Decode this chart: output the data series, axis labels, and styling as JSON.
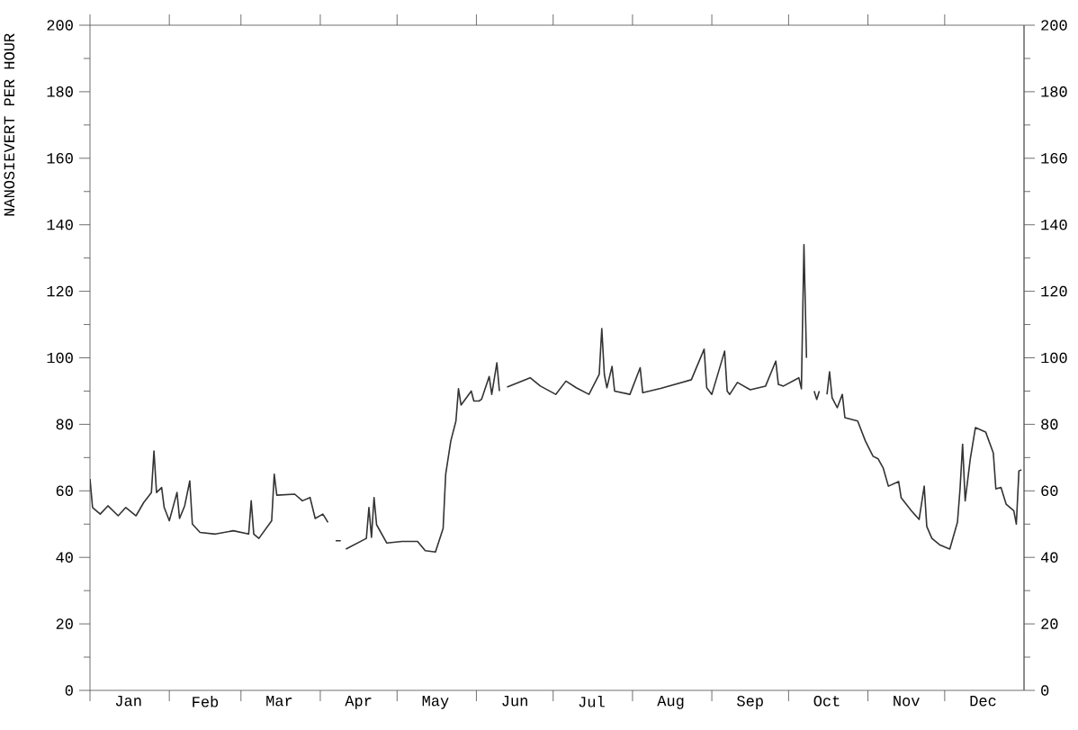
{
  "chart_data": {
    "type": "line",
    "ylabel": "NANOSIEVERT PER HOUR",
    "xlim": [
      "--01-01",
      "--12-31"
    ],
    "xticks": [
      {
        "value": "--01-01",
        "label": null
      },
      {
        "value": "--01-16",
        "label": "Jan"
      },
      {
        "value": "--02-01",
        "label": null
      },
      {
        "value": "--02-15",
        "label": "Feb"
      },
      {
        "value": "--03-01",
        "label": null
      },
      {
        "value": "--03-16",
        "label": "Mar"
      },
      {
        "value": "--04-01",
        "label": null
      },
      {
        "value": "--04-16",
        "label": "Apr"
      },
      {
        "value": "--05-01",
        "label": null
      },
      {
        "value": "--05-16",
        "label": "May"
      },
      {
        "value": "--06-01",
        "label": null
      },
      {
        "value": "--06-16",
        "label": "Jun"
      },
      {
        "value": "--07-01",
        "label": null
      },
      {
        "value": "--07-16",
        "label": "Jul"
      },
      {
        "value": "--08-01",
        "label": null
      },
      {
        "value": "--08-16",
        "label": "Aug"
      },
      {
        "value": "--09-01",
        "label": null
      },
      {
        "value": "--09-16",
        "label": "Sep"
      },
      {
        "value": "--10-01",
        "label": null
      },
      {
        "value": "--10-16",
        "label": "Oct"
      },
      {
        "value": "--11-01",
        "label": null
      },
      {
        "value": "--11-16",
        "label": "Nov"
      },
      {
        "value": "--12-01",
        "label": null
      },
      {
        "value": "--12-16",
        "label": "Dec"
      }
    ],
    "ylim": [
      0,
      200
    ],
    "yticks": [
      0,
      {
        "value": 10,
        "label": null
      },
      20,
      {
        "value": 30,
        "label": null
      },
      40,
      {
        "value": 50,
        "label": null
      },
      60,
      {
        "value": 70,
        "label": null
      },
      80,
      {
        "value": 90,
        "label": null
      },
      100,
      {
        "value": 110,
        "label": null
      },
      120,
      {
        "value": 130,
        "label": null
      },
      140,
      {
        "value": 150,
        "label": null
      },
      160,
      {
        "value": 170,
        "label": null
      },
      180,
      {
        "value": 190,
        "label": null
      },
      200
    ],
    "y2lim": [
      0,
      200
    ],
    "y2ticks": [
      0,
      {
        "value": 10,
        "label": null
      },
      20,
      {
        "value": 30,
        "label": null
      },
      40,
      {
        "value": 50,
        "label": null
      },
      60,
      {
        "value": 70,
        "label": null
      },
      80,
      {
        "value": 90,
        "label": null
      },
      100,
      {
        "value": 110,
        "label": null
      },
      120,
      {
        "value": 130,
        "label": null
      },
      140,
      {
        "value": 150,
        "label": null
      },
      160,
      {
        "value": 170,
        "label": null
      },
      180,
      {
        "value": 190,
        "label": null
      },
      200
    ],
    "series": [
      {
        "color": "#333333",
        "x": [
          "--01-01",
          "--01-02",
          "--01-05",
          "--01-08",
          "--01-12",
          "--01-15",
          "--01-19",
          "--01-22",
          "--01-25",
          "--01-26",
          "--01-27",
          "--01-29",
          "--01-30",
          "--02-01",
          "--02-04",
          "--02-05",
          "--02-07",
          "--02-09",
          "--02-10",
          "--02-13",
          "--02-19",
          "--02-26",
          "--03-04",
          "--03-05",
          "--03-06",
          "--03-08",
          "--03-13",
          "--03-14",
          "--03-15",
          "--03-22",
          "--03-25",
          "--03-28",
          "--03-30",
          "--04-02",
          "--04-04",
          "--04-05",
          "--04-07",
          "--04-09",
          "--04-10",
          "--04-11",
          "--04-19",
          "--04-20",
          "--04-21",
          "--04-22",
          "--04-23",
          "--04-27",
          "--05-03",
          "--05-09",
          "--05-12",
          "--05-16",
          "--05-19",
          "--05-20",
          "--05-22",
          "--05-24",
          "--05-25",
          "--05-26",
          "--05-30",
          "--05-31",
          "--06-02",
          "--06-03",
          "--06-06",
          "--06-07",
          "--06-09",
          "--06-10",
          "--06-11",
          "--06-13",
          "--06-22",
          "--06-26",
          "--07-02",
          "--07-06",
          "--07-10",
          "--07-15",
          "--07-19",
          "--07-20",
          "--07-21",
          "--07-22",
          "--07-24",
          "--07-25",
          "--07-31",
          "--08-04",
          "--08-05",
          "--08-12",
          "--08-24",
          "--08-29",
          "--08-30",
          "--09-01",
          "--09-06",
          "--09-07",
          "--09-08",
          "--09-11",
          "--09-16",
          "--09-22",
          "--09-26",
          "--09-27",
          "--09-29",
          "--10-05",
          "--10-06",
          "--10-07",
          "--10-08",
          "--10-09",
          "--10-11",
          "--10-12",
          "--10-13",
          "--10-14",
          "--10-16",
          "--10-17",
          "--10-18",
          "--10-20",
          "--10-22",
          "--10-23",
          "--10-28",
          "--10-31",
          "--11-03",
          "--11-05",
          "--11-07",
          "--11-09",
          "--11-13",
          "--11-14",
          "--11-18",
          "--11-21",
          "--11-23",
          "--11-24",
          "--11-26",
          "--11-29",
          "--12-03",
          "--12-06",
          "--12-07",
          "--12-08",
          "--12-09",
          "--12-11",
          "--12-13",
          "--12-17",
          "--12-20",
          "--12-21",
          "--12-23",
          "--12-25",
          "--12-28",
          "--12-29",
          "--12-30",
          "--12-31"
        ],
        "values": [
          63.6,
          55,
          53,
          55.5,
          52.5,
          55,
          52.5,
          56.5,
          59.5,
          72,
          59.5,
          61,
          55,
          51,
          59.5,
          51.7,
          55.5,
          63,
          50,
          47.5,
          47,
          48,
          47,
          57,
          47,
          45.7,
          51,
          65,
          58.7,
          59,
          57,
          58,
          51.7,
          53,
          50.5,
          null,
          45,
          45,
          null,
          42.5,
          45.7,
          55,
          46,
          58,
          49.8,
          44.3,
          44.8,
          44.8,
          42,
          41.6,
          48.7,
          65,
          75,
          81,
          90.7,
          85.8,
          90,
          87,
          87,
          87.5,
          94.4,
          89,
          98.5,
          90,
          null,
          91.2,
          94,
          91.5,
          89,
          93,
          91,
          89,
          95,
          108.8,
          95,
          91,
          97.4,
          90,
          89,
          97,
          89.5,
          90.8,
          93.4,
          102.6,
          91,
          89,
          102,
          90,
          89,
          92.6,
          90.4,
          91.5,
          99,
          92,
          91.5,
          94,
          90.7,
          134,
          100,
          null,
          90,
          87.5,
          90,
          null,
          89,
          95.8,
          88,
          85,
          89,
          82,
          81,
          75,
          70.4,
          69.6,
          66.8,
          61.4,
          62.8,
          57.9,
          54,
          51.4,
          61.4,
          49.3,
          45.7,
          43.8,
          42.5,
          50.6,
          60.6,
          74,
          57,
          69.6,
          79,
          77.7,
          71.4,
          60.6,
          61,
          56,
          54,
          50,
          66,
          66.3
        ]
      }
    ]
  }
}
